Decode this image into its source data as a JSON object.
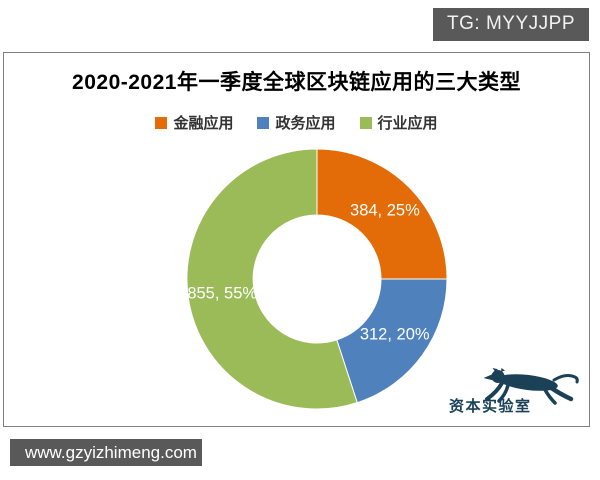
{
  "badge": {
    "text": "TG: MYYJJPP"
  },
  "watermark": {
    "url": "www.gzyizhimeng.com"
  },
  "logo": {
    "text": "资本实验室",
    "icon": "leaping-leopard-icon",
    "color": "#1b4157"
  },
  "chart_data": {
    "type": "pie",
    "donut": true,
    "title": "2020-2021年一季度全球区块链应用的三大类型",
    "legend_position": "top",
    "start_angle_deg": 0,
    "direction": "clockwise",
    "segments": [
      {
        "name": "金融应用",
        "value": 384,
        "percent": 25,
        "label": "384, 25%",
        "color": "#E36C09"
      },
      {
        "name": "政务应用",
        "value": 312,
        "percent": 20,
        "label": "312, 20%",
        "color": "#4F81BD"
      },
      {
        "name": "行业应用",
        "value": 855,
        "percent": 55,
        "label": "855, 55%",
        "color": "#9BBB59"
      }
    ]
  }
}
